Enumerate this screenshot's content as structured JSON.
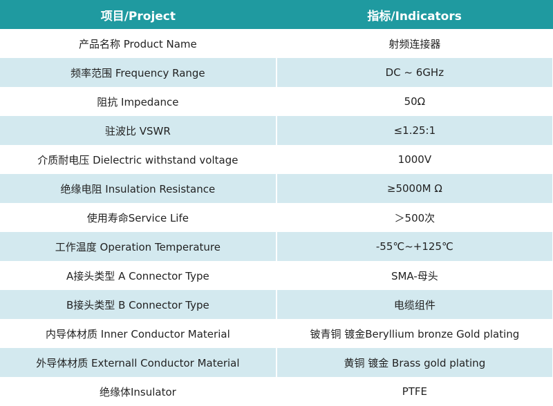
{
  "table": {
    "header": [
      "项目/Project",
      "指标/Indicators"
    ],
    "rows": [
      [
        "产品名称 Product Name",
        "射频连接器"
      ],
      [
        "频率范围 Frequency Range",
        "DC ~ 6GHz"
      ],
      [
        "阻抗 Impedance",
        "50Ω"
      ],
      [
        "驻波比 VSWR",
        "≤1.25:1"
      ],
      [
        "介质耐电压 Dielectric withstand voltage",
        "1000V"
      ],
      [
        "绝缘电阻 Insulation Resistance",
        "≥5000M Ω"
      ],
      [
        "使用寿命Service Life",
        "＞500次"
      ],
      [
        "工作温度 Operation Temperature",
        "-55℃~+125℃"
      ],
      [
        "A接头类型 A Connector Type",
        "SMA-母头"
      ],
      [
        "B接头类型 B Connector Type",
        "电缆组件"
      ],
      [
        "内导体材质 Inner Conductor Material",
        "铍青铜 镀金Beryllium bronze Gold plating"
      ],
      [
        "外导体材质 Externall Conductor Material",
        "黄铜 镀金 Brass gold plating"
      ],
      [
        "绝缘体Insulator",
        "PTFE"
      ]
    ]
  }
}
